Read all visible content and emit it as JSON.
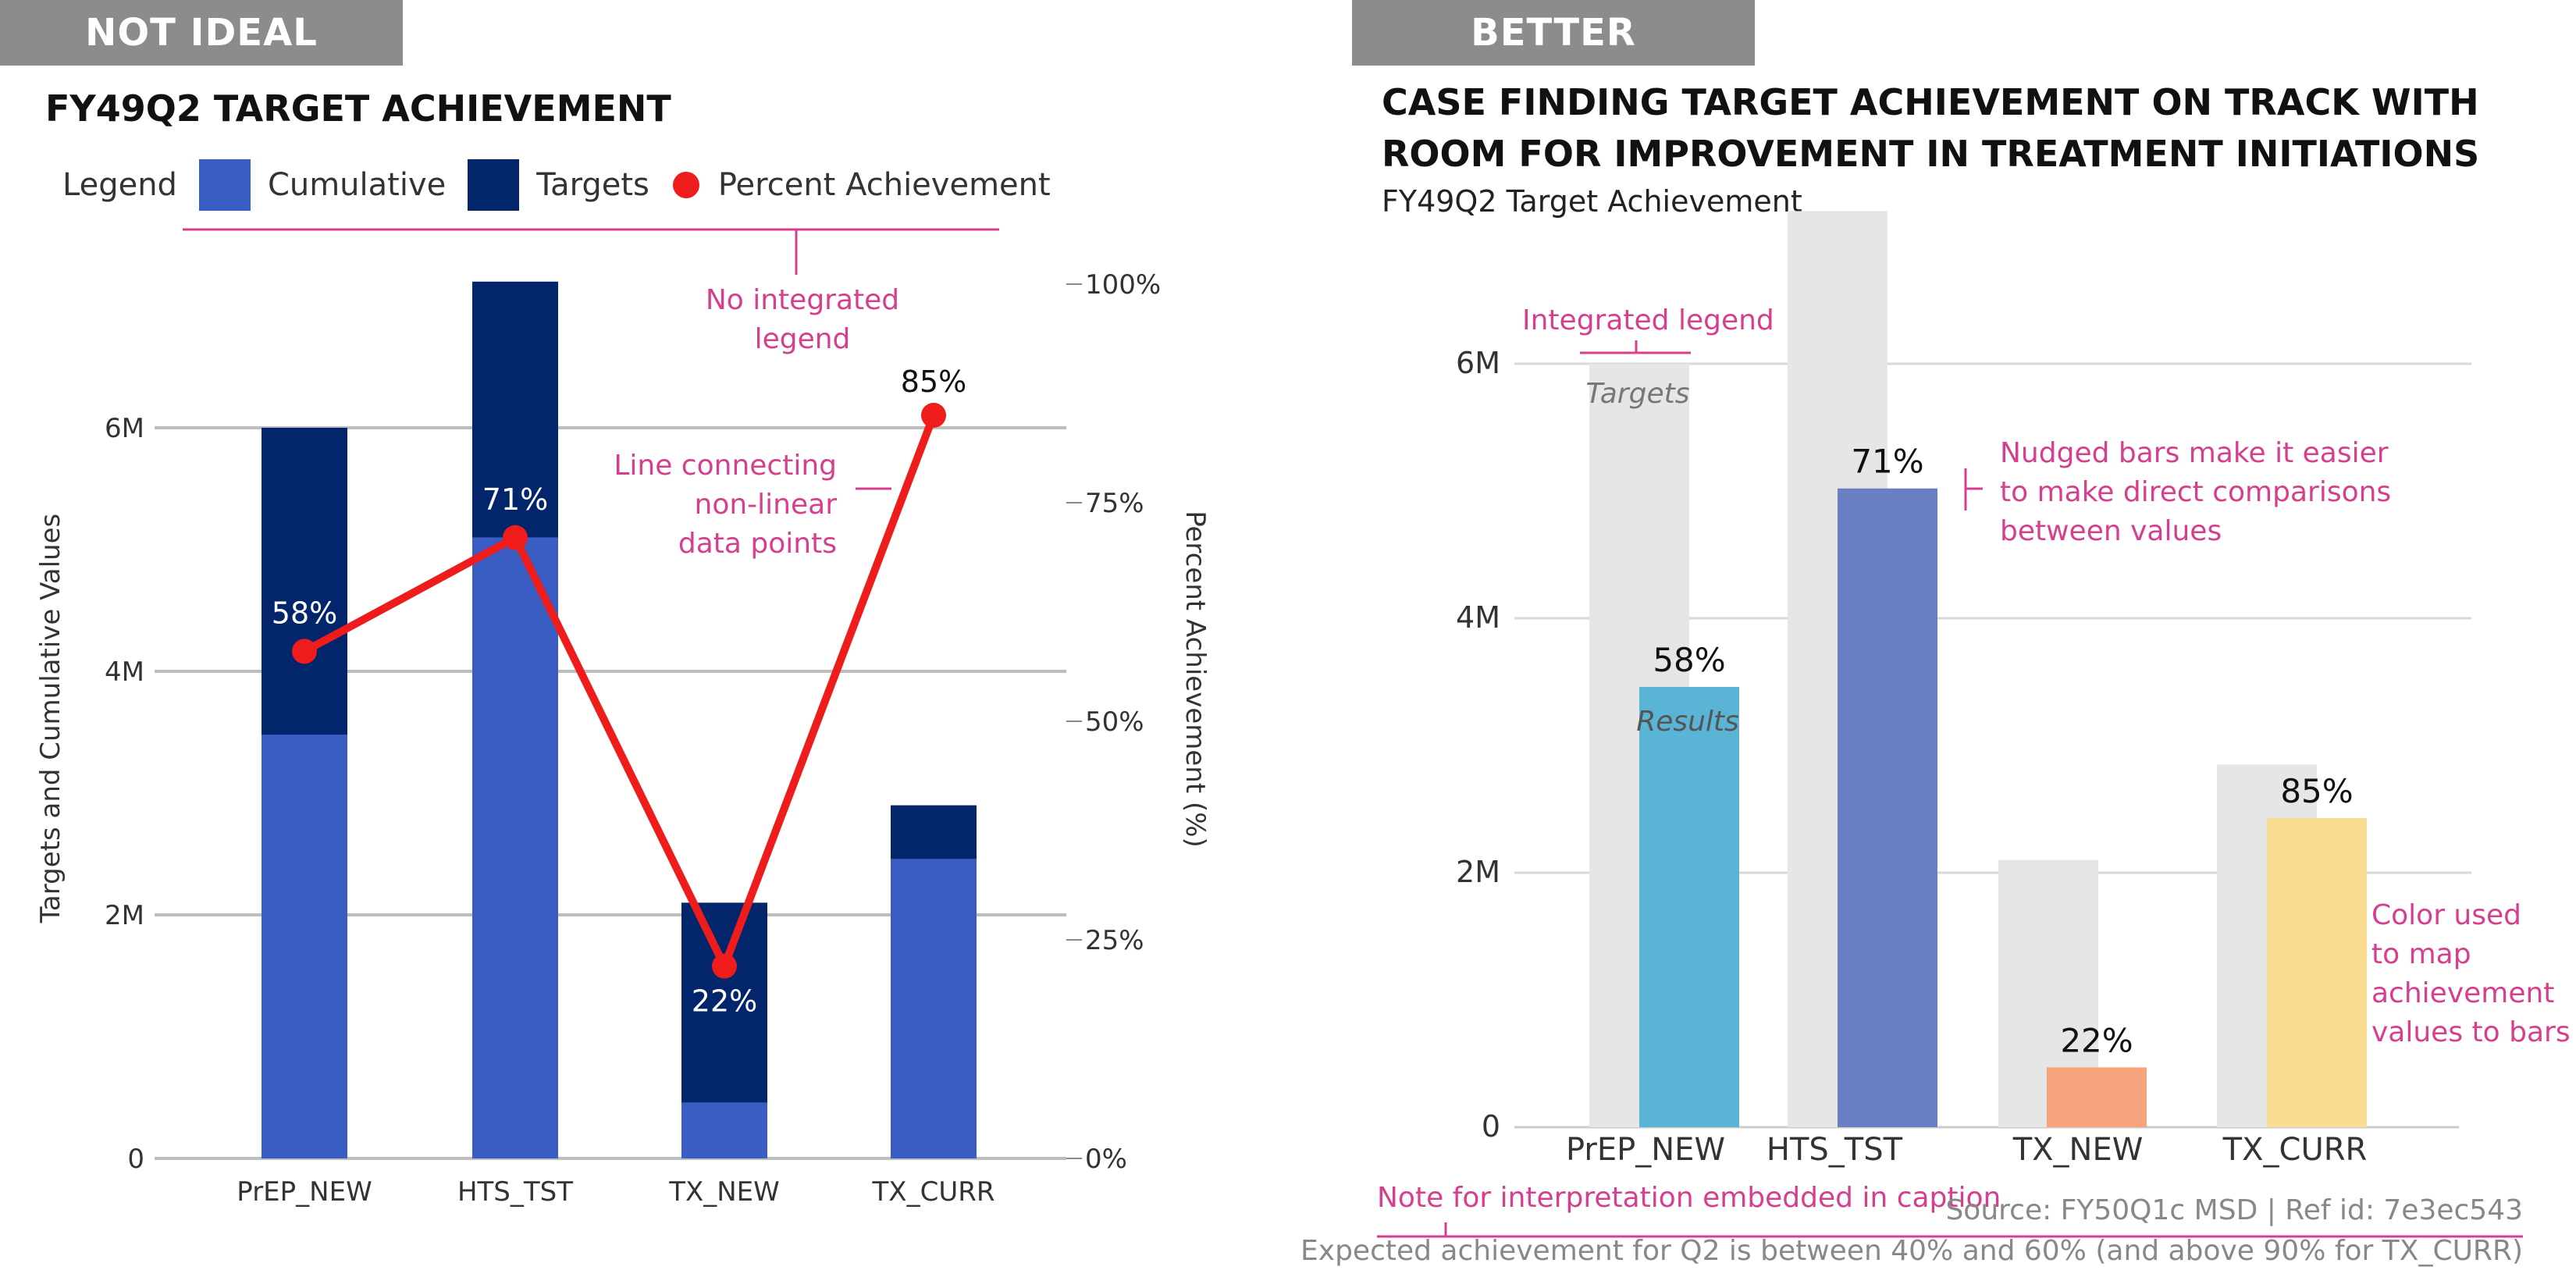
{
  "left": {
    "tag": "NOT IDEAL",
    "title": "FY49Q2 TARGET ACHIEVEMENT",
    "legend": {
      "label": "Legend",
      "items": [
        {
          "label": "Cumulative",
          "color": "#3a5dc3"
        },
        {
          "label": "Targets",
          "color": "#03256b"
        },
        {
          "label": "Percent Achievement",
          "color": "#ef1c1c"
        }
      ]
    },
    "annotations": {
      "legend_note": "No integrated legend",
      "line_note": "Line connecting non-linear data points"
    }
  },
  "right": {
    "tag": "BETTER",
    "title_line1": "CASE FINDING TARGET ACHIEVEMENT ON TRACK WITH",
    "title_line2": "ROOM FOR IMPROVEMENT IN TREATMENT INITIATIONS",
    "subtitle": "FY49Q2 Target Achievement",
    "annotations": {
      "legend_note": "Integrated legend",
      "nudge_note": "Nudged bars make it easier to make direct comparisons between values",
      "color_note": "Color used to map achievement values to bars",
      "caption_note": "Note for interpretation embedded in caption"
    },
    "source": "Source: FY50Q1c MSD | Ref id: 7e3ec543",
    "caption": "Expected achievement for Q2 is between 40% and 60% (and above 90% for TX_CURR)"
  },
  "colors": {
    "accent": "#d63f8e",
    "cumulative": "#3a5dc3",
    "targets": "#03256b",
    "percent": "#ef1c1c",
    "target_gray": "#e6e6e6",
    "tag_gray": "#8c8c8c"
  },
  "chart_data": [
    {
      "type": "bar",
      "title": "FY49Q2 TARGET ACHIEVEMENT",
      "categories": [
        "PrEP_NEW",
        "HTS_TST",
        "TX_NEW",
        "TX_CURR"
      ],
      "series": [
        {
          "name": "Cumulative",
          "values": [
            3480000,
            5100000,
            460000,
            2460000
          ]
        },
        {
          "name": "Targets",
          "values": [
            6000000,
            7200000,
            2100000,
            2900000
          ]
        },
        {
          "name": "Percent Achievement",
          "values": [
            58,
            71,
            22,
            85
          ],
          "axis": "right"
        }
      ],
      "point_labels": [
        "58%",
        "71%",
        "22%",
        "85%"
      ],
      "ylabel": "Targets and Cumulative Values",
      "y2label": "Percent Achievement (%)",
      "ylim": [
        0,
        7200000
      ],
      "y2lim": [
        0,
        100
      ],
      "yticks": [
        "0",
        "2M",
        "4M",
        "6M"
      ],
      "y2ticks": [
        "0%",
        "25%",
        "50%",
        "75%",
        "100%"
      ],
      "grid": true,
      "legend": "top"
    },
    {
      "type": "bar",
      "title": "FY49Q2 Target Achievement",
      "categories": [
        "PrEP_NEW",
        "HTS_TST",
        "TX_NEW",
        "TX_CURR"
      ],
      "series": [
        {
          "name": "Targets",
          "values": [
            6000000,
            7200000,
            2100000,
            2850000
          ]
        },
        {
          "name": "Results",
          "values": [
            3460000,
            5020000,
            470000,
            2430000
          ]
        }
      ],
      "bar_labels": [
        "58%",
        "71%",
        "22%",
        "85%"
      ],
      "bar_colors": [
        "#5ab4d6",
        "#6a7fc1",
        "#f7a37c",
        "#fadc92"
      ],
      "ylim": [
        0,
        7000000
      ],
      "yticks": [
        "0",
        "2M",
        "4M",
        "6M"
      ],
      "grid": true,
      "legend": "integrated"
    }
  ]
}
